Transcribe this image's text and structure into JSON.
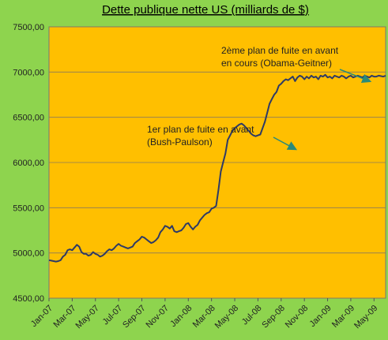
{
  "chart_data": {
    "type": "line",
    "title": "Dette publique nette US (milliards de $)",
    "xlabel": "",
    "ylabel": "",
    "ylim": [
      4500,
      7500
    ],
    "yticks": [
      4500,
      5000,
      5500,
      6000,
      6500,
      7000,
      7500
    ],
    "ytick_labels": [
      "4500,00",
      "5000,00",
      "5500,00",
      "6000,00",
      "6500,00",
      "7000,00",
      "7500,00"
    ],
    "xtick_labels": [
      "Jan-07",
      "Mar-07",
      "May-07",
      "Jul-07",
      "Sep-07",
      "Nov-07",
      "Jan-08",
      "Mar-08",
      "May-08",
      "Jul-08",
      "Sep-08",
      "Nov-08",
      "Jan-09",
      "Mar-09",
      "May-09"
    ],
    "grid": true,
    "colors": {
      "plot_bg": "#ffbf00",
      "line": "#2e3a66",
      "page_bg": "#8ed44e",
      "gridline": "#8a7a5a"
    },
    "x": [
      0,
      0.2,
      0.4,
      0.6,
      0.8,
      1.0,
      1.2,
      1.4,
      1.6,
      1.8,
      2.0,
      2.2,
      2.4,
      2.6,
      2.8,
      3.0,
      3.2,
      3.4,
      3.6,
      3.8,
      4.0,
      4.2,
      4.4,
      4.6,
      4.8,
      5.0,
      5.2,
      5.4,
      5.6,
      5.8,
      6.0,
      6.2,
      6.4,
      6.6,
      6.8,
      7.0,
      7.2,
      7.4,
      7.6,
      7.8,
      8.0,
      8.2,
      8.4,
      8.6,
      8.8,
      9.0,
      9.2,
      9.4,
      9.6,
      9.8,
      10.0,
      10.2,
      10.4,
      10.6,
      10.8,
      11.0,
      11.2,
      11.4,
      11.6,
      11.8,
      12.0,
      12.2,
      12.4,
      12.6,
      12.8,
      13.0,
      13.2,
      13.4,
      13.6,
      13.8,
      14.0,
      14.2,
      14.4,
      14.6,
      14.8,
      15.0,
      15.2,
      15.4,
      15.6,
      15.8,
      16.0,
      16.2,
      16.4,
      16.6,
      16.8,
      17.0,
      17.2,
      17.4,
      17.6,
      17.8,
      18.0,
      18.2,
      18.4,
      18.6,
      18.8,
      19.0,
      19.2,
      19.4,
      19.6,
      19.8,
      20.0,
      20.2,
      20.4,
      20.6,
      20.8,
      21.0,
      21.2,
      21.4,
      21.6,
      21.8,
      22.0,
      22.2,
      22.4,
      22.6,
      22.8,
      23.0,
      23.2,
      23.4,
      23.6,
      23.8,
      24.0,
      24.2,
      24.4,
      24.6,
      24.8,
      25.0,
      25.2,
      25.4,
      25.6,
      25.8,
      26.0,
      26.2,
      26.4,
      26.6,
      26.8,
      27.0,
      27.2,
      27.4,
      27.6,
      27.8,
      28.0,
      28.2,
      28.4,
      28.6,
      28.8,
      29.0
    ],
    "series": [
      {
        "values": [
          4920,
          4915,
          4910,
          4905,
          4910,
          4920,
          4960,
          4980,
          5030,
          5040,
          5030,
          5060,
          5090,
          5070,
          5010,
          4990,
          4990,
          4970,
          4980,
          5010,
          4990,
          4980,
          4960,
          4970,
          4990,
          5020,
          5040,
          5030,
          5050,
          5080,
          5100,
          5080,
          5070,
          5060,
          5050,
          5060,
          5070,
          5110,
          5130,
          5150,
          5180,
          5170,
          5150,
          5130,
          5110,
          5120,
          5140,
          5170,
          5230,
          5260,
          5300,
          5290,
          5270,
          5300,
          5240,
          5230,
          5240,
          5250,
          5280,
          5320,
          5330,
          5290,
          5260,
          5290,
          5310,
          5360,
          5390,
          5420,
          5440,
          5450,
          5490,
          5500,
          5520,
          5700,
          5900,
          6000,
          6100,
          6250,
          6300,
          6350,
          6380,
          6400,
          6420,
          6430,
          6410,
          6380,
          6350,
          6320,
          6300,
          6290,
          6300,
          6310,
          6380,
          6450,
          6550,
          6650,
          6700,
          6750,
          6780,
          6850,
          6870,
          6900,
          6920,
          6910,
          6930,
          6950,
          6900,
          6940,
          6960,
          6950,
          6920,
          6950,
          6930,
          6960,
          6940,
          6950,
          6920,
          6960,
          6950,
          6970,
          6940,
          6950,
          6930,
          6960,
          6950,
          6940,
          6960,
          6950,
          6930,
          6950,
          6960,
          6940,
          6950,
          6960,
          6950,
          6940,
          6960,
          6950,
          6940,
          6960,
          6950,
          6950,
          6960,
          6955,
          6950,
          6960
        ]
      }
    ],
    "annotations": [
      {
        "lines": [
          "2ème plan de fuite en avant",
          "en cours (Obama-Geitner)"
        ]
      },
      {
        "lines": [
          "1er plan de fuite en avant",
          "(Bush-Paulson)"
        ]
      }
    ]
  }
}
